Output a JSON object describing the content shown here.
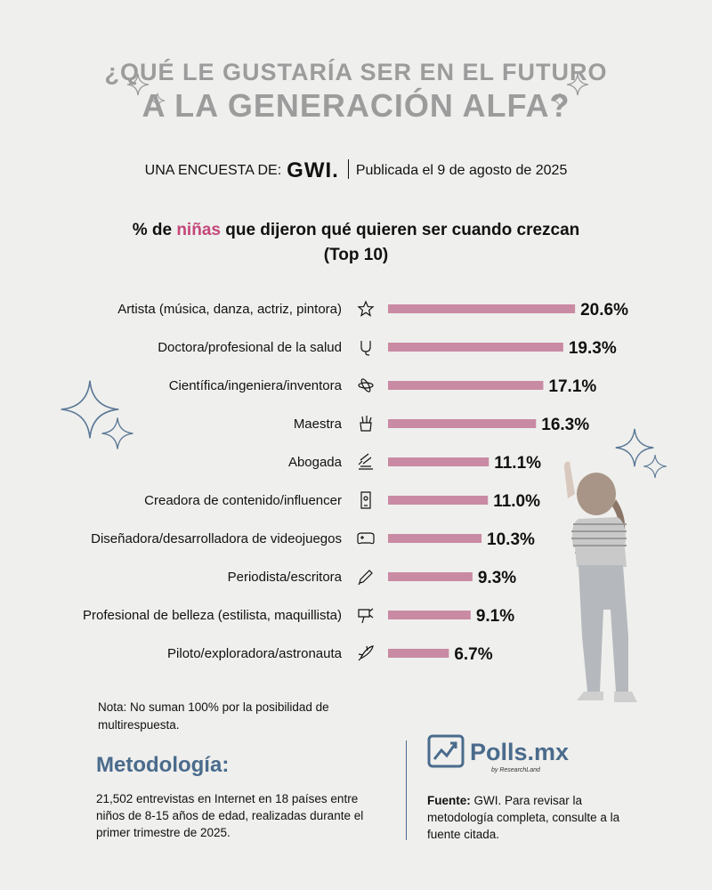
{
  "header": {
    "title_line1": "¿QUÉ LE GUSTARÍA SER EN EL FUTURO",
    "title_line2": "A LA GENERACIÓN ALFA?",
    "survey_prefix": "UNA ENCUESTA DE:",
    "survey_brand": "GWI.",
    "published": "Publicada el 9 de agosto de 2025"
  },
  "subtitle": {
    "part1": "% de ",
    "highlight": "niñas",
    "part2": " que dijeron qué quieren ser cuando crezcan",
    "line2": "(Top 10)"
  },
  "colors": {
    "bar": "#c98aa3",
    "highlight": "#c4477a",
    "accent": "#4a6b8c",
    "title": "#9c9c9c"
  },
  "chart_data": {
    "type": "bar",
    "orientation": "horizontal",
    "categories": [
      "Artista (música, danza, actriz, pintora)",
      "Doctora/profesional de la salud",
      "Científica/ingeniera/inventora",
      "Maestra",
      "Abogada",
      "Creadora de contenido/influencer",
      "Diseñadora/desarrolladora de videojuegos",
      "Periodista/escritora",
      "Profesional de belleza (estilista, maquillista)",
      "Piloto/exploradora/astronauta"
    ],
    "values": [
      20.6,
      19.3,
      17.1,
      16.3,
      11.1,
      11.0,
      10.3,
      9.3,
      9.1,
      6.7
    ],
    "value_labels": [
      "20.6%",
      "19.3%",
      "17.1%",
      "16.3%",
      "11.1%",
      "11.0%",
      "10.3%",
      "9.3%",
      "9.1%",
      "6.7%"
    ],
    "icons": [
      "star-performer-icon",
      "stethoscope-icon",
      "atom-icon",
      "pencil-cup-icon",
      "gavel-icon",
      "smartphone-icon",
      "gamepad-icon",
      "pen-icon",
      "hairdryer-icon",
      "rocket-icon"
    ]
  },
  "footer": {
    "note": "Nota: No suman 100% por la posibilidad de multirespuesta.",
    "method_title": "Metodología:",
    "method_text": "21,502 entrevistas en Internet en 18 países entre niños de 8-15 años de edad, realizadas durante el primer trimestre de 2025.",
    "brand": "Polls.mx",
    "brand_sub": "by ResearchLand",
    "source_label": "Fuente:",
    "source_text": " GWI. Para revisar la metodología completa, consulte a la fuente citada."
  }
}
